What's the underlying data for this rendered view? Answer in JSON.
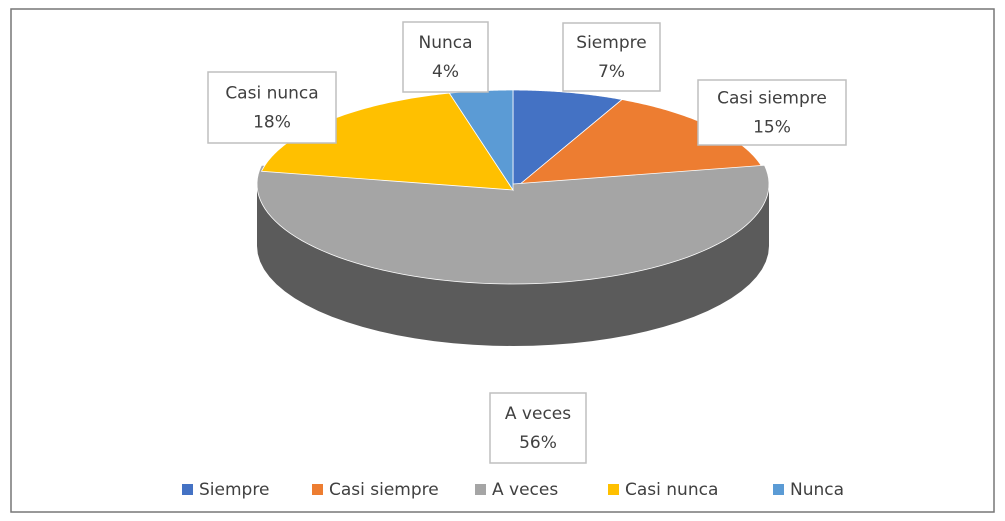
{
  "chart_data": {
    "type": "pie",
    "categories": [
      "Siempre",
      "Casi siempre",
      "A veces",
      "Casi nunca",
      "Nunca"
    ],
    "values": [
      7,
      15,
      56,
      18,
      4
    ],
    "value_labels": [
      "7%",
      "15%",
      "56%",
      "18%",
      "4%"
    ],
    "colors": [
      "#4472c4",
      "#ed7d31",
      "#a5a5a5",
      "#ffc000",
      "#5b9bd5"
    ],
    "legend": "bottom"
  }
}
